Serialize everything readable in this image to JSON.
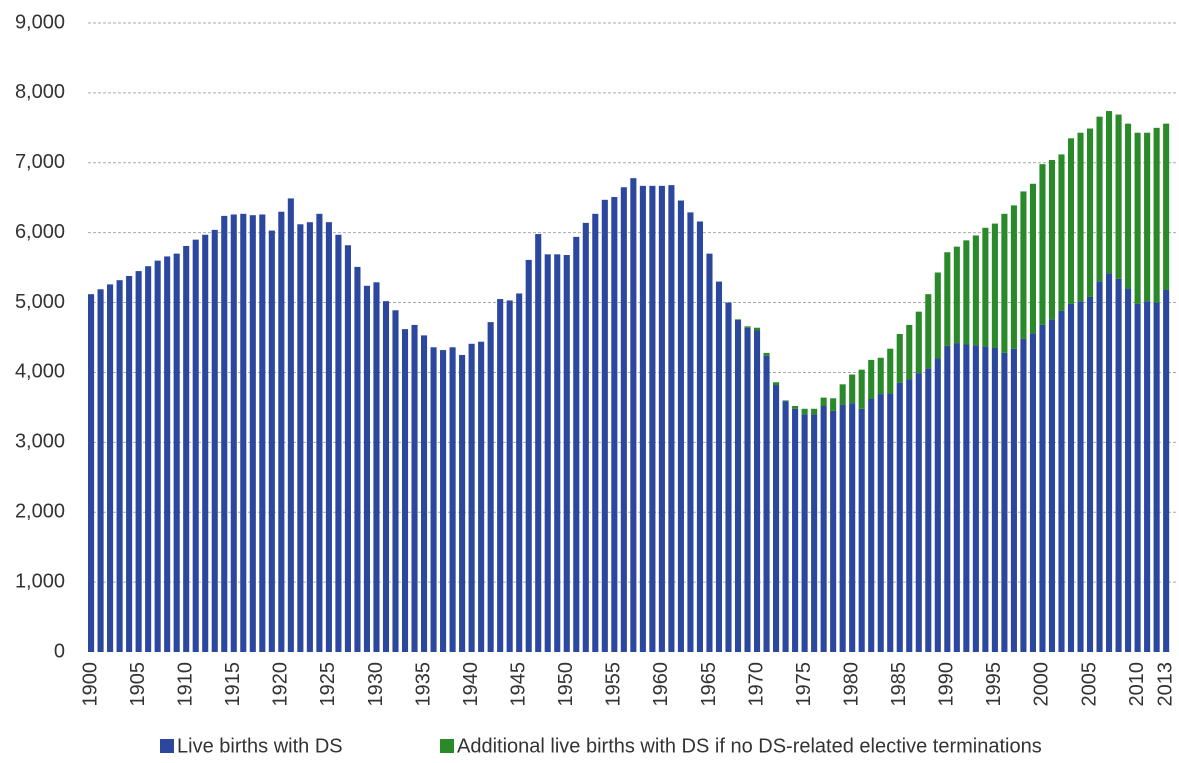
{
  "chart_data": {
    "type": "stacked-bar",
    "categories": [
      "1900",
      null,
      null,
      null,
      null,
      "1905",
      null,
      null,
      null,
      null,
      "1910",
      null,
      null,
      null,
      null,
      "1915",
      null,
      null,
      null,
      null,
      "1920",
      null,
      null,
      null,
      null,
      "1925",
      null,
      null,
      null,
      null,
      "1930",
      null,
      null,
      null,
      null,
      "1935",
      null,
      null,
      null,
      null,
      "1940",
      null,
      null,
      null,
      null,
      "1945",
      null,
      null,
      null,
      null,
      "1950",
      null,
      null,
      null,
      null,
      "1955",
      null,
      null,
      null,
      null,
      "1960",
      null,
      null,
      null,
      null,
      "1965",
      null,
      null,
      null,
      null,
      "1970",
      null,
      null,
      null,
      null,
      "1975",
      null,
      null,
      null,
      null,
      "1980",
      null,
      null,
      null,
      null,
      "1985",
      null,
      null,
      null,
      null,
      "1990",
      null,
      null,
      null,
      null,
      "1995",
      null,
      null,
      null,
      null,
      "2000",
      null,
      null,
      null,
      null,
      "2005",
      null,
      null,
      null,
      null,
      "2010",
      null,
      null,
      "2013"
    ],
    "series": [
      {
        "name": "Live births with DS",
        "color": "#2b479e",
        "values": [
          5120,
          5190,
          5260,
          5320,
          5380,
          5450,
          5520,
          5600,
          5660,
          5700,
          5810,
          5900,
          5970,
          6040,
          6240,
          6260,
          6270,
          6250,
          6260,
          6030,
          6300,
          6490,
          6120,
          6150,
          6270,
          6150,
          5970,
          5820,
          5510,
          5240,
          5290,
          5020,
          4890,
          4620,
          4680,
          4530,
          4360,
          4320,
          4360,
          4250,
          4410,
          4440,
          4720,
          5050,
          5030,
          5130,
          5610,
          5980,
          5690,
          5690,
          5680,
          5940,
          6140,
          6270,
          6470,
          6510,
          6650,
          6780,
          6670,
          6670,
          6670,
          6680,
          6460,
          6290,
          6160,
          5700,
          5300,
          5000,
          4750,
          4640,
          4600,
          4240,
          3820,
          3590,
          3480,
          3400,
          3400,
          3520,
          3450,
          3540,
          3560,
          3480,
          3620,
          3690,
          3700,
          3850,
          3900,
          3990,
          4060,
          4200,
          4380,
          4420,
          4400,
          4390,
          4370,
          4350,
          4280,
          4340,
          4480,
          4560,
          4680,
          4760,
          4880,
          4980,
          5020,
          5080,
          5300,
          5420,
          5340,
          5200,
          4980,
          5020,
          5000,
          5180
        ]
      },
      {
        "name": "Additional live births with DS if no DS-related elective terminations",
        "color": "#2a8a2a",
        "values": [
          0,
          0,
          0,
          0,
          0,
          0,
          0,
          0,
          0,
          0,
          0,
          0,
          0,
          0,
          0,
          0,
          0,
          0,
          0,
          0,
          0,
          0,
          0,
          0,
          0,
          0,
          0,
          0,
          0,
          0,
          0,
          0,
          0,
          0,
          0,
          0,
          0,
          0,
          0,
          0,
          0,
          0,
          0,
          0,
          0,
          0,
          0,
          0,
          0,
          0,
          0,
          0,
          0,
          0,
          0,
          0,
          0,
          0,
          0,
          0,
          0,
          0,
          0,
          0,
          0,
          0,
          0,
          0,
          10,
          20,
          40,
          40,
          40,
          10,
          40,
          80,
          80,
          120,
          180,
          290,
          410,
          560,
          560,
          520,
          640,
          700,
          780,
          880,
          1060,
          1230,
          1340,
          1380,
          1490,
          1570,
          1700,
          1780,
          1990,
          2050,
          2110,
          2140,
          2300,
          2280,
          2240,
          2370,
          2410,
          2410,
          2360,
          2320,
          2350,
          2360,
          2450,
          2410,
          2500,
          2380
        ]
      }
    ],
    "ylim": [
      0,
      9000
    ],
    "yticks": [
      0,
      {
        "value": 1000,
        "label": "1,000"
      },
      {
        "value": 2000,
        "label": "2,000"
      },
      {
        "value": 3000,
        "label": "3,000"
      },
      {
        "value": 4000,
        "label": "4,000"
      },
      {
        "value": 5000,
        "label": "5,000"
      },
      {
        "value": 6000,
        "label": "6,000"
      },
      {
        "value": 7000,
        "label": "7,000"
      },
      {
        "value": 8000,
        "label": "8,000"
      },
      {
        "value": 9000,
        "label": "9,000"
      }
    ],
    "grid": true,
    "legend": "bottom"
  }
}
